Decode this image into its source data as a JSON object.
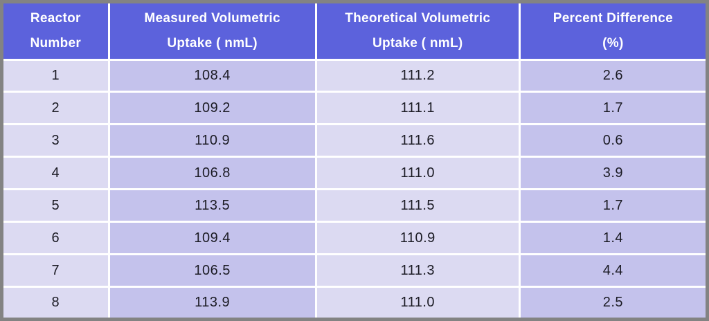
{
  "chart_data": {
    "type": "table",
    "title": "",
    "columns": [
      "Reactor Number",
      "Measured Volumetric Uptake ( nmL)",
      "Theoretical Volumetric Uptake ( nmL)",
      "Percent Difference (%)"
    ],
    "rows": [
      [
        1,
        108.4,
        111.2,
        2.6
      ],
      [
        2,
        109.2,
        111.1,
        1.7
      ],
      [
        3,
        110.9,
        111.6,
        0.6
      ],
      [
        4,
        106.8,
        111.0,
        3.9
      ],
      [
        5,
        113.5,
        111.5,
        1.7
      ],
      [
        6,
        109.4,
        110.9,
        1.4
      ],
      [
        7,
        106.5,
        111.3,
        4.4
      ],
      [
        8,
        113.9,
        111.0,
        2.5
      ]
    ]
  },
  "table": {
    "headers": [
      {
        "line1": "Reactor",
        "line2": "Number"
      },
      {
        "line1": "Measured Volumetric",
        "line2": "Uptake ( nmL)"
      },
      {
        "line1": "Theoretical Volumetric",
        "line2": "Uptake ( nmL)"
      },
      {
        "line1": "Percent Difference",
        "line2": "(%)"
      }
    ],
    "rows": [
      [
        "1",
        "108.4",
        "111.2",
        "2.6"
      ],
      [
        "2",
        "109.2",
        "111.1",
        "1.7"
      ],
      [
        "3",
        "110.9",
        "111.6",
        "0.6"
      ],
      [
        "4",
        "106.8",
        "111.0",
        "3.9"
      ],
      [
        "5",
        "113.5",
        "111.5",
        "1.7"
      ],
      [
        "6",
        "109.4",
        "110.9",
        "1.4"
      ],
      [
        "7",
        "106.5",
        "111.3",
        "4.4"
      ],
      [
        "8",
        "113.9",
        "111.0",
        "2.5"
      ]
    ],
    "column_widths_pct": [
      15,
      29.5,
      29,
      26.5
    ]
  },
  "colors": {
    "header_bg": "#5c62dc",
    "column_light": "#dcdaf2",
    "column_dark": "#c4c2ec",
    "frame_border": "#838383",
    "divider": "#ffffff",
    "header_text": "#ffffff",
    "cell_text": "#1b1b24"
  }
}
